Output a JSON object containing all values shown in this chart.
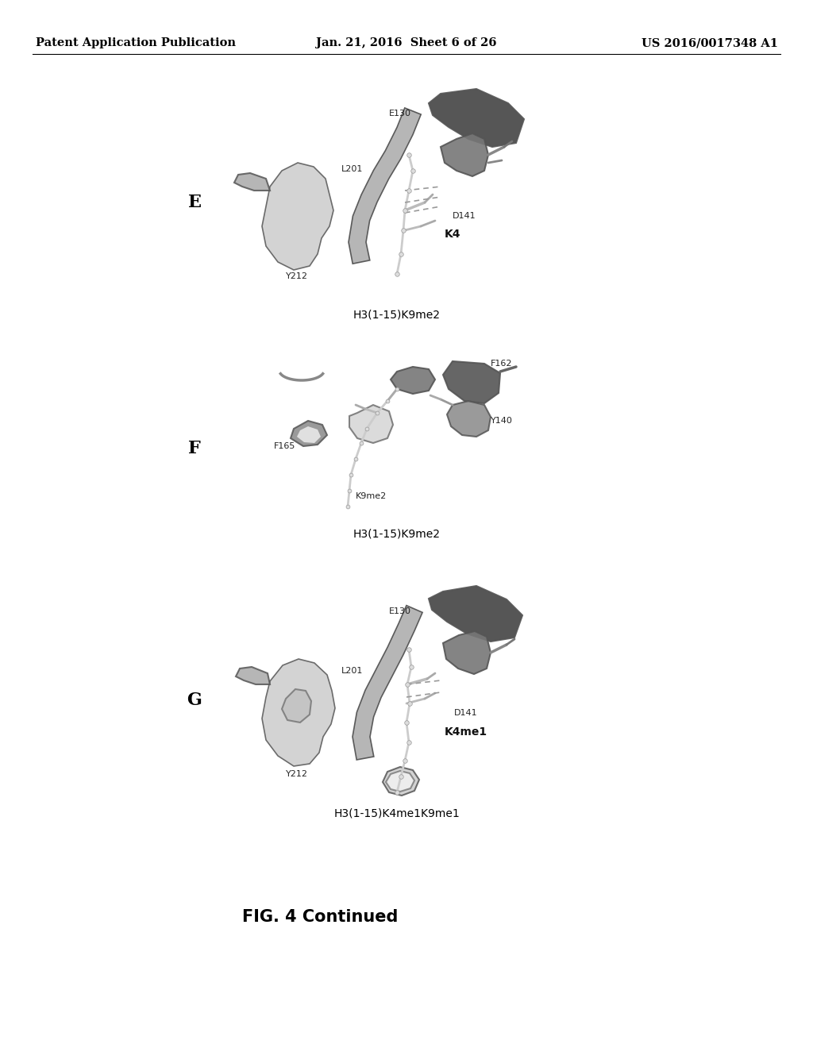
{
  "header_left": "Patent Application Publication",
  "header_mid": "Jan. 21, 2016  Sheet 6 of 26",
  "header_right": "US 2016/0017348 A1",
  "footer_caption": "FIG. 4 Continued",
  "panel_E_label": "E",
  "panel_F_label": "F",
  "panel_G_label": "G",
  "panel_E_caption": "H3(1-15)K9me2",
  "panel_F_caption": "H3(1-15)K9me2",
  "panel_G_caption": "H3(1-15)K4me1K9me1",
  "bg_color": "#ffffff",
  "text_color": "#000000",
  "header_fontsize": 10.5,
  "ann_fontsize": 8,
  "label_fontsize": 16,
  "caption_fontsize": 10,
  "footer_fontsize": 15
}
